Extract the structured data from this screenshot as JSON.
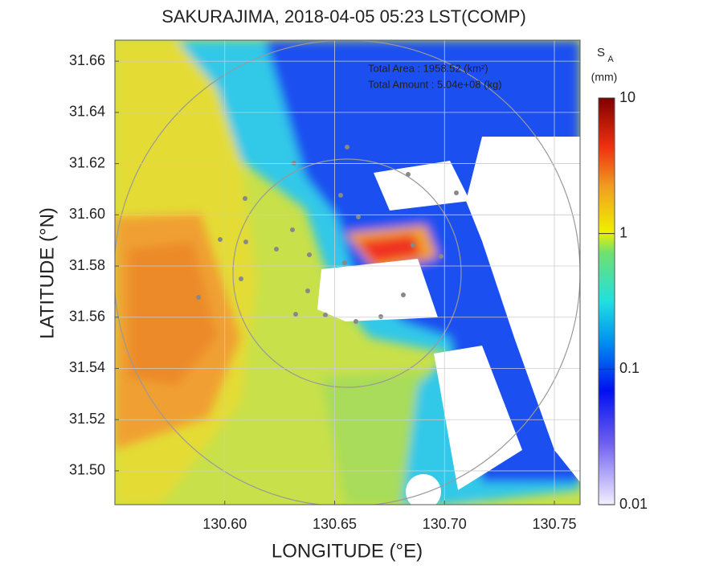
{
  "chart_data": {
    "type": "radar-map",
    "title": "SAKURAJIMA, 2018-04-05 05:23 LST(COMP)",
    "xlabel": "LONGITUDE (°E)",
    "ylabel": "LATITUDE (°N)",
    "annotations": [
      "Total Area   : 1958.52 (km²)",
      "Total Amount : 5.04e+08 (kg)"
    ],
    "xlim": [
      130.55,
      130.7617
    ],
    "ylim": [
      31.4868,
      31.6682
    ],
    "xticks": [
      {
        "value": 130.6,
        "label": "130.60"
      },
      {
        "value": 130.65,
        "label": "130.65"
      },
      {
        "value": 130.7,
        "label": "130.70"
      },
      {
        "value": 130.75,
        "label": "130.75"
      }
    ],
    "yticks": [
      {
        "value": 31.5,
        "label": "31.50"
      },
      31.52,
      31.54,
      31.56,
      31.58,
      {
        "value": 31.6,
        "label": "31.60"
      },
      31.62,
      31.64,
      31.66
    ],
    "grid": true,
    "colorbar": {
      "label": "S",
      "label_subscript": "A",
      "units": "(mm)",
      "scale": "log",
      "lim": [
        0.01,
        10
      ],
      "ticks": [
        0.01,
        0.1,
        1,
        10
      ]
    }
  }
}
